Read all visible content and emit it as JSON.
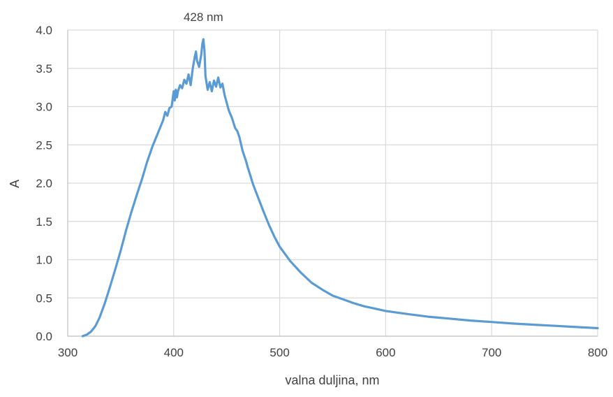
{
  "chart_data": {
    "type": "line",
    "title": "",
    "xlabel": "valna duljina, nm",
    "ylabel": "A",
    "xlim": [
      300,
      800
    ],
    "ylim": [
      0.0,
      4.0
    ],
    "x_ticks": [
      300,
      400,
      500,
      600,
      700,
      800
    ],
    "x_tick_labels": [
      "300",
      "400",
      "500",
      "600",
      "700",
      "800"
    ],
    "y_ticks": [
      0.0,
      0.5,
      1.0,
      1.5,
      2.0,
      2.5,
      3.0,
      3.5,
      4.0
    ],
    "y_tick_labels": [
      "0.0",
      "0.5",
      "1.0",
      "1.5",
      "2.0",
      "2.5",
      "3.0",
      "3.5",
      "4.0"
    ],
    "grid": true,
    "legend": "none",
    "line_color": "#5b9bd5",
    "annotations": [
      {
        "text": "428 nm",
        "x": 428,
        "y": 3.88
      }
    ],
    "series": [
      {
        "x": [
          314,
          318,
          322,
          326,
          330,
          335,
          340,
          345,
          350,
          355,
          360,
          365,
          370,
          375,
          380,
          385,
          390,
          392,
          394,
          396,
          398,
          400,
          401,
          402,
          403,
          404,
          406,
          408,
          410,
          412,
          414,
          416,
          418,
          420,
          421,
          422,
          424,
          426,
          427,
          428,
          429,
          430,
          432,
          434,
          436,
          438,
          440,
          442,
          444,
          446,
          448,
          450,
          452,
          455,
          458,
          460,
          462,
          465,
          468,
          470,
          475,
          480,
          485,
          490,
          495,
          500,
          510,
          520,
          530,
          540,
          550,
          560,
          570,
          580,
          590,
          600,
          620,
          640,
          660,
          680,
          700,
          720,
          740,
          760,
          780,
          800
        ],
        "y": [
          0.0,
          0.02,
          0.06,
          0.13,
          0.24,
          0.43,
          0.65,
          0.88,
          1.12,
          1.38,
          1.62,
          1.84,
          2.05,
          2.28,
          2.48,
          2.65,
          2.82,
          2.93,
          2.88,
          2.98,
          3.0,
          3.2,
          3.08,
          3.22,
          3.12,
          3.2,
          3.28,
          3.24,
          3.35,
          3.3,
          3.42,
          3.28,
          3.5,
          3.66,
          3.72,
          3.6,
          3.52,
          3.68,
          3.82,
          3.88,
          3.74,
          3.4,
          3.22,
          3.32,
          3.2,
          3.34,
          3.26,
          3.38,
          3.25,
          3.3,
          3.15,
          3.05,
          2.95,
          2.85,
          2.72,
          2.68,
          2.6,
          2.42,
          2.3,
          2.2,
          1.98,
          1.8,
          1.62,
          1.45,
          1.3,
          1.17,
          0.98,
          0.83,
          0.7,
          0.61,
          0.53,
          0.48,
          0.43,
          0.39,
          0.36,
          0.33,
          0.29,
          0.255,
          0.23,
          0.205,
          0.185,
          0.165,
          0.15,
          0.135,
          0.12,
          0.105
        ]
      }
    ]
  }
}
